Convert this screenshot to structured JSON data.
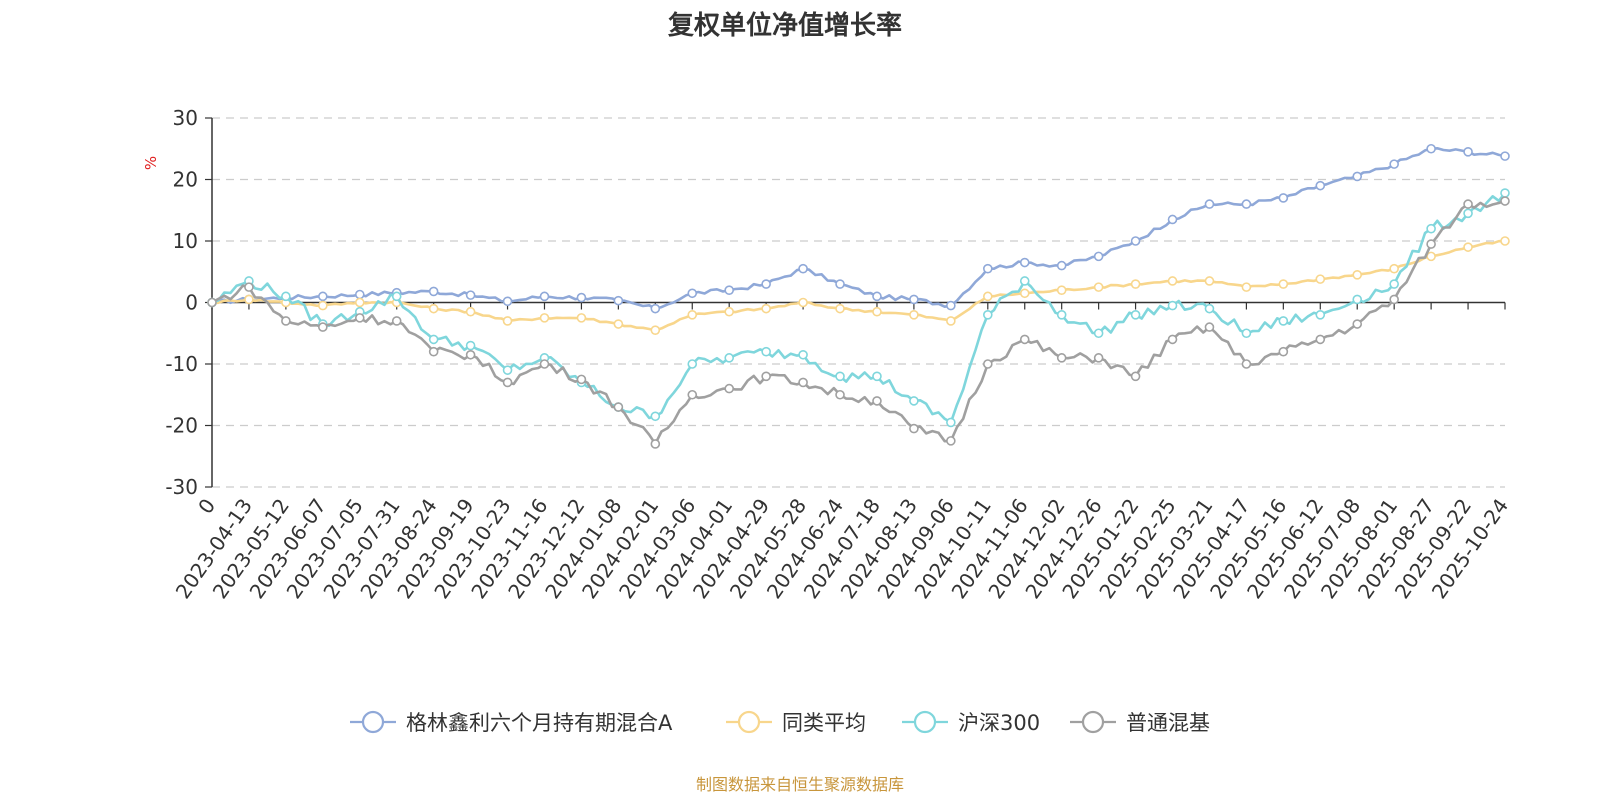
{
  "chart_data": {
    "type": "line",
    "title": "复权单位净值增长率",
    "ylabel": "%",
    "ylim": [
      -30,
      30
    ],
    "yticks": [
      30,
      20,
      10,
      0,
      -10,
      -20,
      -30
    ],
    "grid": true,
    "legend_position": "bottom-center",
    "x": [
      "0",
      "2023-04-13",
      "2023-05-12",
      "2023-06-07",
      "2023-07-05",
      "2023-07-31",
      "2023-08-24",
      "2023-09-19",
      "2023-10-23",
      "2023-11-16",
      "2023-12-12",
      "2024-01-08",
      "2024-02-01",
      "2024-03-06",
      "2024-04-01",
      "2024-04-29",
      "2024-05-28",
      "2024-06-24",
      "2024-07-18",
      "2024-08-13",
      "2024-09-06",
      "2024-10-11",
      "2024-11-06",
      "2024-12-02",
      "2024-12-26",
      "2025-01-22",
      "2025-02-25",
      "2025-03-21",
      "2025-04-17",
      "2025-05-16",
      "2025-06-12",
      "2025-07-08",
      "2025-08-01",
      "2025-08-27",
      "2025-09-22",
      "2025-10-24"
    ],
    "series": [
      {
        "name": "格林鑫利六个月持有期混合A",
        "color": "#8fa8d8",
        "values": [
          0,
          0.5,
          0.8,
          1.0,
          1.3,
          1.6,
          1.8,
          1.2,
          0.2,
          1.0,
          0.8,
          0.3,
          -1.0,
          1.5,
          2.0,
          3.0,
          5.5,
          3.0,
          1.0,
          0.5,
          -0.5,
          5.5,
          6.5,
          6.0,
          7.5,
          10.0,
          13.5,
          16.0,
          16.0,
          17.0,
          19.0,
          20.5,
          22.5,
          25.0,
          24.5,
          23.8
        ]
      },
      {
        "name": "同类平均",
        "color": "#f8d68c",
        "values": [
          0,
          0.5,
          0,
          -0.5,
          0,
          0,
          -1.0,
          -1.5,
          -3.0,
          -2.5,
          -2.5,
          -3.5,
          -4.5,
          -2.0,
          -1.5,
          -1.0,
          0,
          -1.0,
          -1.5,
          -2.0,
          -3.0,
          1.0,
          1.5,
          2.0,
          2.5,
          3.0,
          3.5,
          3.5,
          2.5,
          3.0,
          3.8,
          4.5,
          5.5,
          7.5,
          9.0,
          10.0
        ]
      },
      {
        "name": "沪深300",
        "color": "#7fd6dc",
        "values": [
          0,
          3.5,
          1.0,
          -3.5,
          -1.5,
          1.0,
          -6.0,
          -7.0,
          -11.0,
          -9.0,
          -13.0,
          -17.0,
          -18.5,
          -10.0,
          -9.0,
          -8.0,
          -8.5,
          -12.0,
          -12.0,
          -16.0,
          -19.5,
          -2.0,
          3.5,
          -2.0,
          -5.0,
          -2.0,
          -0.5,
          -1.0,
          -5.0,
          -3.0,
          -2.0,
          0.5,
          3.0,
          12.0,
          14.5,
          17.8
        ]
      },
      {
        "name": "普通混基",
        "color": "#a0a0a0",
        "values": [
          0,
          2.5,
          -3.0,
          -4.0,
          -2.5,
          -3.0,
          -8.0,
          -8.5,
          -13.0,
          -10.0,
          -12.5,
          -17.0,
          -23.0,
          -15.0,
          -14.0,
          -12.0,
          -13.0,
          -15.0,
          -16.0,
          -20.5,
          -22.5,
          -10.0,
          -6.0,
          -9.0,
          -9.0,
          -12.0,
          -6.0,
          -4.0,
          -10.0,
          -8.0,
          -6.0,
          -3.5,
          0.5,
          9.5,
          16.0,
          16.5
        ]
      }
    ],
    "source": "制图数据来自恒生聚源数据库"
  }
}
